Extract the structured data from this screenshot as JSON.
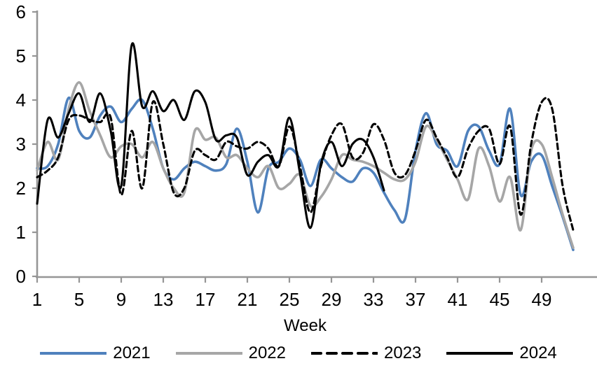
{
  "chart_data": {
    "type": "line",
    "title": "",
    "xlabel": "Week",
    "ylabel": "",
    "xlim": [
      1,
      52
    ],
    "ylim": [
      0,
      6
    ],
    "x_ticks": [
      1,
      5,
      9,
      13,
      17,
      21,
      25,
      29,
      33,
      37,
      41,
      45,
      49
    ],
    "y_ticks": [
      0,
      1,
      2,
      3,
      4,
      5,
      6
    ],
    "grid": false,
    "legend_position": "bottom",
    "x": [
      1,
      2,
      3,
      4,
      5,
      6,
      7,
      8,
      9,
      10,
      11,
      12,
      13,
      14,
      15,
      16,
      17,
      18,
      19,
      20,
      21,
      22,
      23,
      24,
      25,
      26,
      27,
      28,
      29,
      30,
      31,
      32,
      33,
      34,
      35,
      36,
      37,
      38,
      39,
      40,
      41,
      42,
      43,
      44,
      45,
      46,
      47,
      48,
      49,
      50,
      51,
      52
    ],
    "series": [
      {
        "name": "2021",
        "color": "#4F81BD",
        "line_style": "solid",
        "values": [
          2.45,
          2.5,
          3.0,
          4.05,
          3.3,
          3.15,
          3.65,
          3.85,
          3.5,
          3.8,
          4.0,
          3.35,
          2.45,
          2.2,
          2.45,
          2.6,
          2.5,
          2.4,
          2.55,
          3.35,
          2.6,
          1.45,
          2.45,
          2.6,
          2.9,
          2.65,
          2.05,
          2.65,
          2.45,
          2.25,
          2.15,
          2.45,
          2.35,
          1.9,
          1.5,
          1.3,
          2.85,
          3.7,
          3.0,
          2.85,
          2.5,
          3.3,
          3.4,
          2.85,
          2.55,
          3.8,
          1.85,
          2.6,
          2.75,
          2.05,
          1.35,
          0.6
        ]
      },
      {
        "name": "2022",
        "color": "#A6A6A6",
        "line_style": "solid",
        "values": [
          2.4,
          3.05,
          2.65,
          3.8,
          4.4,
          3.75,
          3.2,
          2.7,
          2.95,
          3.0,
          2.7,
          3.05,
          2.45,
          2.0,
          1.9,
          3.3,
          3.1,
          3.15,
          2.7,
          2.75,
          2.45,
          2.25,
          2.5,
          2.0,
          2.1,
          2.3,
          1.6,
          1.8,
          2.2,
          2.75,
          2.65,
          2.6,
          2.5,
          2.35,
          2.2,
          2.2,
          2.6,
          3.4,
          3.1,
          2.65,
          2.2,
          1.75,
          2.9,
          2.5,
          1.7,
          2.25,
          1.05,
          2.85,
          3.0,
          2.25,
          1.4,
          0.65
        ]
      },
      {
        "name": "2023",
        "color": "#000000",
        "line_style": "dashed",
        "values": [
          2.25,
          2.4,
          2.7,
          3.55,
          3.65,
          3.55,
          3.5,
          3.6,
          1.85,
          3.3,
          2.0,
          3.95,
          3.0,
          1.9,
          2.0,
          2.85,
          2.75,
          2.65,
          3.05,
          2.95,
          2.9,
          3.05,
          2.9,
          2.5,
          3.4,
          2.5,
          1.45,
          2.5,
          3.2,
          3.45,
          2.7,
          2.8,
          3.45,
          3.1,
          2.35,
          2.3,
          2.85,
          3.55,
          3.15,
          2.7,
          2.25,
          2.9,
          3.3,
          3.35,
          2.55,
          3.4,
          1.4,
          3.0,
          3.95,
          3.8,
          2.05,
          1.05
        ]
      },
      {
        "name": "2024",
        "color": "#000000",
        "line_style": "solid",
        "values": [
          1.65,
          3.55,
          3.15,
          3.7,
          4.15,
          3.5,
          4.15,
          3.3,
          2.05,
          5.25,
          3.85,
          4.2,
          3.75,
          4.0,
          3.55,
          4.2,
          3.95,
          3.1,
          3.2,
          3.15,
          2.3,
          2.6,
          2.75,
          2.5,
          3.6,
          2.35,
          1.1,
          2.55,
          3.05,
          2.5,
          3.0,
          3.1,
          2.7,
          1.95
        ]
      }
    ]
  },
  "style": {
    "axis_color": "#969696",
    "text_color": "#000000",
    "background_color": "#FFFFFF"
  }
}
